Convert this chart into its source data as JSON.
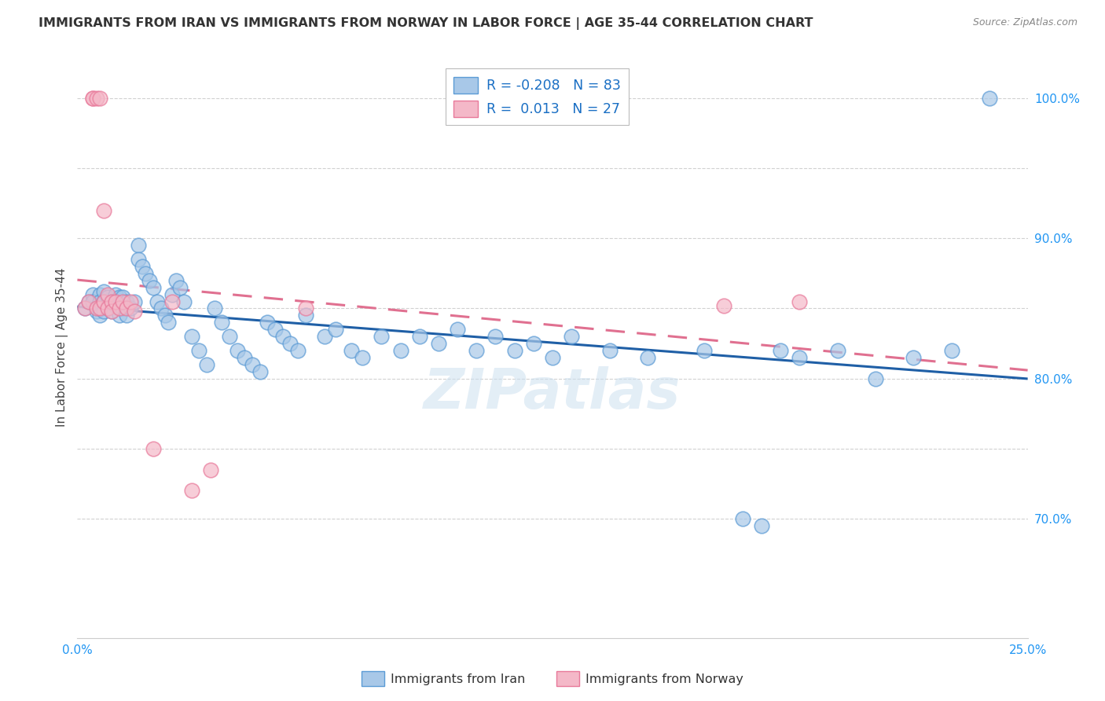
{
  "title": "IMMIGRANTS FROM IRAN VS IMMIGRANTS FROM NORWAY IN LABOR FORCE | AGE 35-44 CORRELATION CHART",
  "source": "Source: ZipAtlas.com",
  "ylabel": "In Labor Force | Age 35-44",
  "xlim": [
    0.0,
    0.25
  ],
  "ylim": [
    0.615,
    1.03
  ],
  "iran_R": "-0.208",
  "iran_N": "83",
  "norway_R": "0.013",
  "norway_N": "27",
  "iran_color": "#a8c8e8",
  "iran_edge_color": "#5b9bd5",
  "norway_color": "#f4b8c8",
  "norway_edge_color": "#e8799a",
  "iran_line_color": "#1f5fa6",
  "norway_line_color": "#e07090",
  "background_color": "#ffffff",
  "grid_color": "#cccccc",
  "tick_color": "#2196F3",
  "iran_x": [
    0.002,
    0.003,
    0.004,
    0.004,
    0.005,
    0.005,
    0.006,
    0.006,
    0.006,
    0.007,
    0.007,
    0.007,
    0.008,
    0.008,
    0.009,
    0.009,
    0.01,
    0.01,
    0.011,
    0.011,
    0.012,
    0.012,
    0.013,
    0.013,
    0.014,
    0.015,
    0.016,
    0.016,
    0.017,
    0.018,
    0.019,
    0.02,
    0.021,
    0.022,
    0.023,
    0.024,
    0.025,
    0.026,
    0.027,
    0.028,
    0.03,
    0.032,
    0.034,
    0.036,
    0.038,
    0.04,
    0.042,
    0.044,
    0.046,
    0.048,
    0.05,
    0.052,
    0.054,
    0.056,
    0.058,
    0.06,
    0.065,
    0.068,
    0.072,
    0.075,
    0.08,
    0.085,
    0.09,
    0.095,
    0.1,
    0.105,
    0.11,
    0.115,
    0.12,
    0.125,
    0.13,
    0.14,
    0.15,
    0.165,
    0.175,
    0.18,
    0.185,
    0.19,
    0.2,
    0.21,
    0.22,
    0.23,
    0.24
  ],
  "iran_y": [
    0.85,
    0.855,
    0.86,
    0.855,
    0.85,
    0.848,
    0.86,
    0.855,
    0.845,
    0.862,
    0.855,
    0.848,
    0.858,
    0.85,
    0.855,
    0.848,
    0.86,
    0.852,
    0.858,
    0.845,
    0.858,
    0.85,
    0.855,
    0.845,
    0.85,
    0.855,
    0.895,
    0.885,
    0.88,
    0.875,
    0.87,
    0.865,
    0.855,
    0.85,
    0.845,
    0.84,
    0.86,
    0.87,
    0.865,
    0.855,
    0.83,
    0.82,
    0.81,
    0.85,
    0.84,
    0.83,
    0.82,
    0.815,
    0.81,
    0.805,
    0.84,
    0.835,
    0.83,
    0.825,
    0.82,
    0.845,
    0.83,
    0.835,
    0.82,
    0.815,
    0.83,
    0.82,
    0.83,
    0.825,
    0.835,
    0.82,
    0.83,
    0.82,
    0.825,
    0.815,
    0.83,
    0.82,
    0.815,
    0.82,
    0.7,
    0.695,
    0.82,
    0.815,
    0.82,
    0.8,
    0.815,
    0.82,
    1.0
  ],
  "norway_x": [
    0.002,
    0.003,
    0.004,
    0.004,
    0.005,
    0.005,
    0.006,
    0.006,
    0.007,
    0.007,
    0.008,
    0.008,
    0.009,
    0.009,
    0.01,
    0.011,
    0.012,
    0.013,
    0.014,
    0.015,
    0.02,
    0.025,
    0.03,
    0.035,
    0.06,
    0.17,
    0.19
  ],
  "norway_y": [
    0.85,
    0.855,
    1.0,
    1.0,
    1.0,
    0.85,
    1.0,
    0.85,
    0.92,
    0.855,
    0.86,
    0.85,
    0.855,
    0.848,
    0.855,
    0.85,
    0.855,
    0.85,
    0.855,
    0.848,
    0.75,
    0.855,
    0.72,
    0.735,
    0.85,
    0.852,
    0.855
  ]
}
